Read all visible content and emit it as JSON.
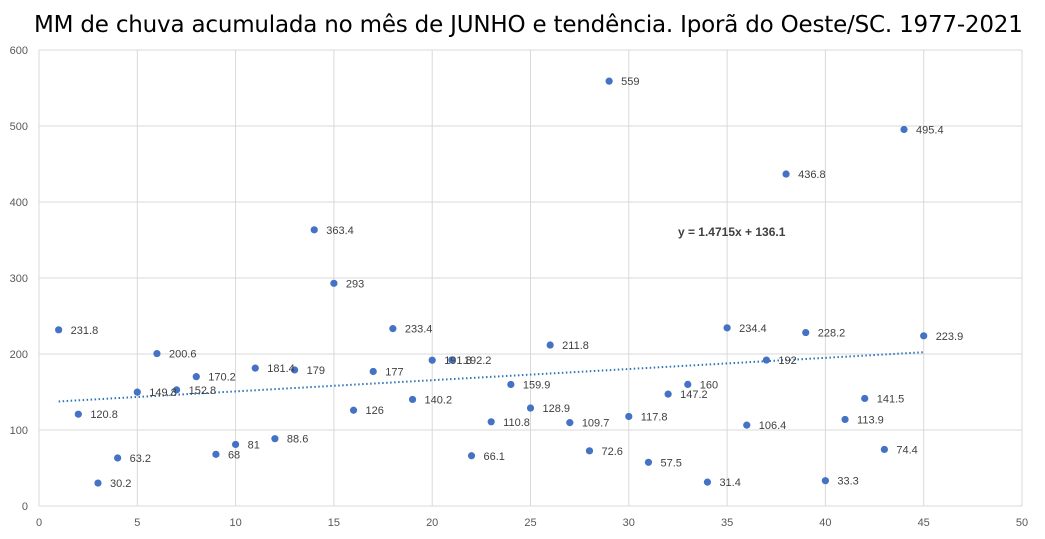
{
  "chart_data": {
    "type": "scatter",
    "title": "MM de chuva acumulada no mês de JUNHO e tendência. Iporã do Oeste/SC. 1977-2021",
    "xlabel": "",
    "ylabel": "",
    "xlim": [
      0,
      50
    ],
    "ylim": [
      0,
      600
    ],
    "xticks": [
      0,
      5,
      10,
      15,
      20,
      25,
      30,
      35,
      40,
      45,
      50
    ],
    "yticks": [
      0,
      100,
      200,
      300,
      400,
      500,
      600
    ],
    "grid": true,
    "legend": "none",
    "series": [
      {
        "name": "MM de chuva",
        "color": "#4472C4",
        "x": [
          1,
          2,
          3,
          4,
          5,
          6,
          7,
          8,
          9,
          10,
          11,
          12,
          13,
          14,
          15,
          16,
          17,
          18,
          19,
          20,
          21,
          22,
          23,
          24,
          25,
          26,
          27,
          28,
          29,
          30,
          31,
          32,
          33,
          34,
          35,
          36,
          37,
          38,
          39,
          40,
          41,
          42,
          43,
          44,
          45
        ],
        "y": [
          231.8,
          120.8,
          30.2,
          63.2,
          149.8,
          200.6,
          152.8,
          170.2,
          68,
          81,
          181.4,
          88.6,
          179,
          363.4,
          293,
          126,
          177,
          233.4,
          140.2,
          191.8,
          192.2,
          66.1,
          110.8,
          159.9,
          128.9,
          211.8,
          109.7,
          72.6,
          559,
          117.8,
          57.5,
          147.2,
          160,
          31.4,
          234.4,
          106.4,
          192,
          436.8,
          228.2,
          33.3,
          113.9,
          141.5,
          74.4,
          495.4,
          223.9
        ],
        "labels": [
          "231.8",
          "120.8",
          "30.2",
          "63.2",
          "149.8",
          "200.6",
          "152.8",
          "170.2",
          "68",
          "81",
          "181.4",
          "88.6",
          "179",
          "363.4",
          "293",
          "126",
          "177",
          "233.4",
          "140.2",
          "191.8",
          "192.2",
          "66.1",
          "110.8",
          "159.9",
          "128.9",
          "211.8",
          "109.7",
          "72.6",
          "559",
          "117.8",
          "57.5",
          "147.2",
          "160",
          "31.4",
          "234.4",
          "106.4",
          "192",
          "436.8",
          "228.2",
          "33.3",
          "113.9",
          "141.5",
          "74.4",
          "495.4",
          "223.9"
        ]
      }
    ],
    "trendline": {
      "slope": 1.4715,
      "intercept": 136.1,
      "x_range": [
        1,
        45
      ],
      "color": "#2E75B6",
      "equation_text": "y = 1.4715x + 136.1",
      "equation_anchor": {
        "x": 32.5,
        "y": 355
      }
    }
  }
}
